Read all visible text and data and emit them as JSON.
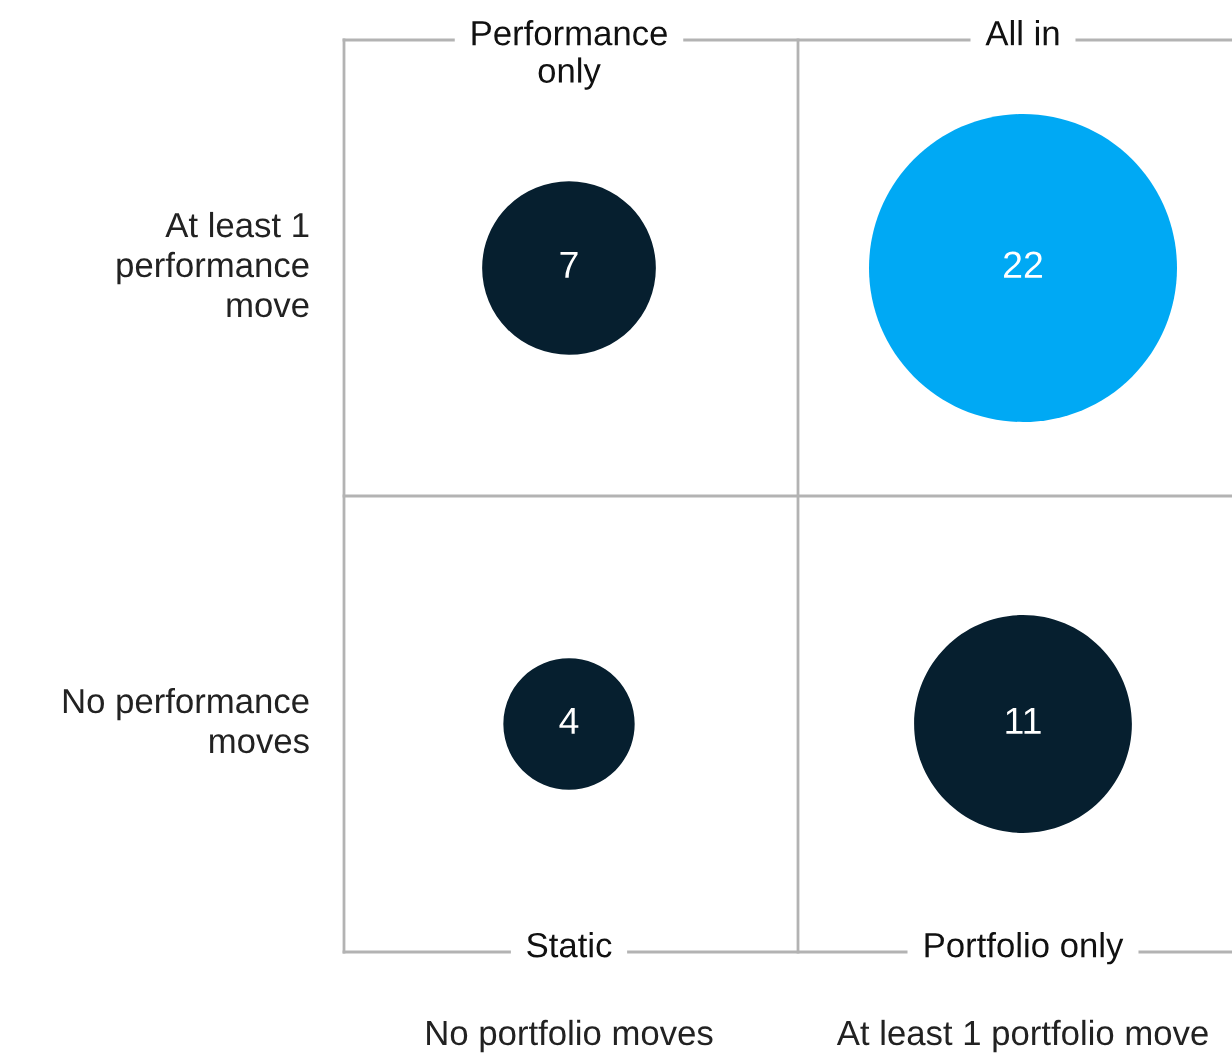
{
  "chart_data": {
    "type": "other",
    "categories": [
      "No portfolio moves",
      "At least 1 portfolio move"
    ],
    "y_categories": [
      "At least 1\nperformance\nmove",
      "No performance\nmoves"
    ],
    "series": [
      {
        "values": [
          7,
          22
        ],
        "colors": [
          "#061f2f",
          "#00a9f4"
        ]
      },
      {
        "values": [
          4,
          11
        ],
        "colors": [
          "#061f2f",
          "#061f2f"
        ]
      }
    ],
    "annotations": [
      "Performance\nonly",
      "All in",
      "Static",
      "Portfolio only"
    ],
    "data_labels": true
  }
}
